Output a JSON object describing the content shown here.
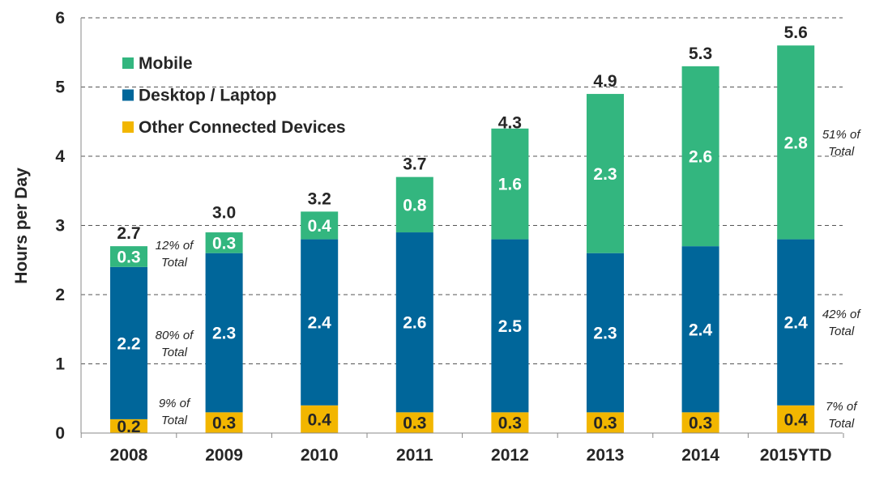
{
  "chart_data": {
    "type": "bar",
    "stacked": true,
    "title": "",
    "xlabel": "",
    "ylabel": "Hours per Day",
    "ylim": [
      0,
      6
    ],
    "yticks": [
      "0",
      "1",
      "2",
      "3",
      "4",
      "5",
      "6"
    ],
    "grid": "horizontal dashed",
    "legend_placement": "top-left",
    "categories": [
      "2008",
      "2009",
      "2010",
      "2011",
      "2012",
      "2013",
      "2014",
      "2015YTD"
    ],
    "series": [
      {
        "name": "Other Connected Devices",
        "color": "#F2B600",
        "values": [
          0.2,
          0.3,
          0.4,
          0.3,
          0.3,
          0.3,
          0.3,
          0.4
        ],
        "labels": [
          "0.2",
          "0.3",
          "0.4",
          "0.3",
          "0.3",
          "0.3",
          "0.3",
          "0.4"
        ]
      },
      {
        "name": "Desktop / Laptop",
        "color": "#00669A",
        "values": [
          2.2,
          2.3,
          2.4,
          2.6,
          2.5,
          2.3,
          2.4,
          2.4
        ],
        "labels": [
          "2.2",
          "2.3",
          "2.4",
          "2.6",
          "2.5",
          "2.3",
          "2.4",
          "2.4"
        ]
      },
      {
        "name": "Mobile",
        "color": "#33B67F",
        "values": [
          0.3,
          0.3,
          0.4,
          0.8,
          1.6,
          2.3,
          2.6,
          2.8
        ],
        "labels": [
          "0.3",
          "0.3",
          "0.4",
          "0.8",
          "1.6",
          "2.3",
          "2.6",
          "2.8"
        ]
      }
    ],
    "totals": [
      "2.7",
      "3.0",
      "3.2",
      "3.7",
      "4.3",
      "4.9",
      "5.3",
      "5.6"
    ],
    "total_values": [
      2.7,
      3.0,
      3.2,
      3.7,
      4.3,
      4.9,
      5.3,
      5.6
    ],
    "legend": [
      "Mobile",
      "Desktop / Laptop",
      "Other Connected Devices"
    ],
    "annotations": [
      {
        "category": "2008",
        "series": "Mobile",
        "lines": [
          "12% of",
          "Total"
        ]
      },
      {
        "category": "2008",
        "series": "Desktop / Laptop",
        "lines": [
          "80% of",
          "Total"
        ]
      },
      {
        "category": "2008",
        "series": "Other Connected Devices",
        "lines": [
          "9% of",
          "Total"
        ]
      },
      {
        "category": "2015YTD",
        "series": "Mobile",
        "lines": [
          "51% of",
          "Total"
        ]
      },
      {
        "category": "2015YTD",
        "series": "Desktop / Laptop",
        "lines": [
          "42% of",
          "Total"
        ]
      },
      {
        "category": "2015YTD",
        "series": "Other Connected Devices",
        "lines": [
          "7% of",
          "Total"
        ]
      }
    ]
  }
}
